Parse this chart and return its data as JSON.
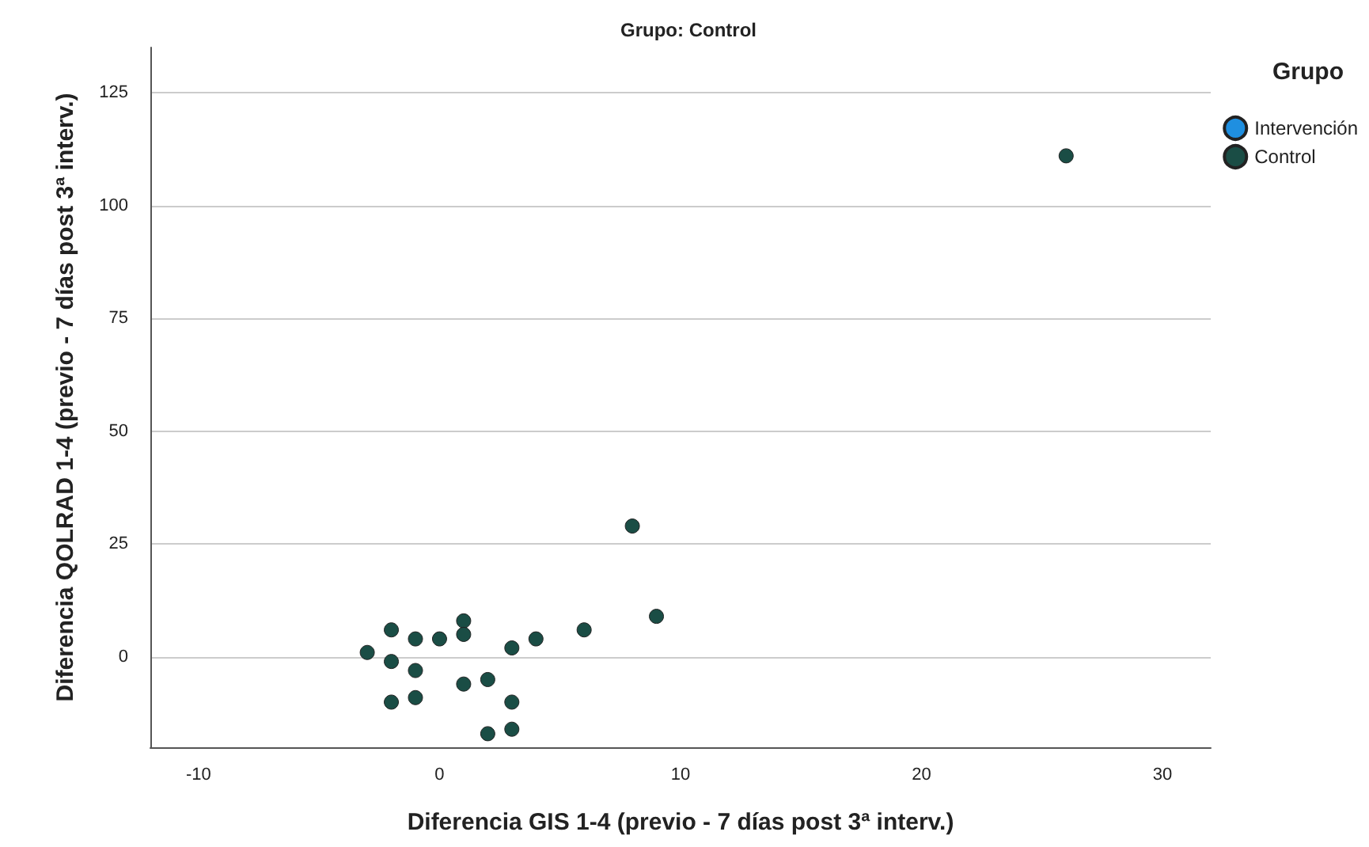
{
  "chart_data": {
    "type": "scatter",
    "title": "Grupo: Control",
    "xlabel": "Diferencia GIS 1-4 (previo - 7 días post 3ª interv.)",
    "ylabel": "Diferencia QOLRAD 1-4 (previo - 7 días post 3ª interv.)",
    "legend_title": "Grupo",
    "series": [
      {
        "name": "Intervención",
        "color": "#1f8fe0"
      },
      {
        "name": "Control",
        "color": "#1a4d45",
        "x": [
          -3,
          -2,
          -2,
          -2,
          -1,
          -1,
          -1,
          0,
          1,
          1,
          1,
          2,
          2,
          3,
          3,
          3,
          4,
          6,
          8,
          9,
          26
        ],
        "values": [
          1,
          6,
          -1,
          -10,
          4,
          -3,
          -9,
          4,
          8,
          5,
          -6,
          -5,
          -17,
          2,
          -10,
          -16,
          4,
          6,
          29,
          9,
          111
        ]
      }
    ],
    "xlim": [
      -12,
      32
    ],
    "xticks": [
      -10,
      0,
      10,
      20,
      30
    ],
    "ylim": [
      -20,
      135
    ],
    "yticks": [
      0,
      25,
      50,
      75,
      100,
      125
    ],
    "grid": "y",
    "legend": "top right",
    "marker": "circle"
  }
}
